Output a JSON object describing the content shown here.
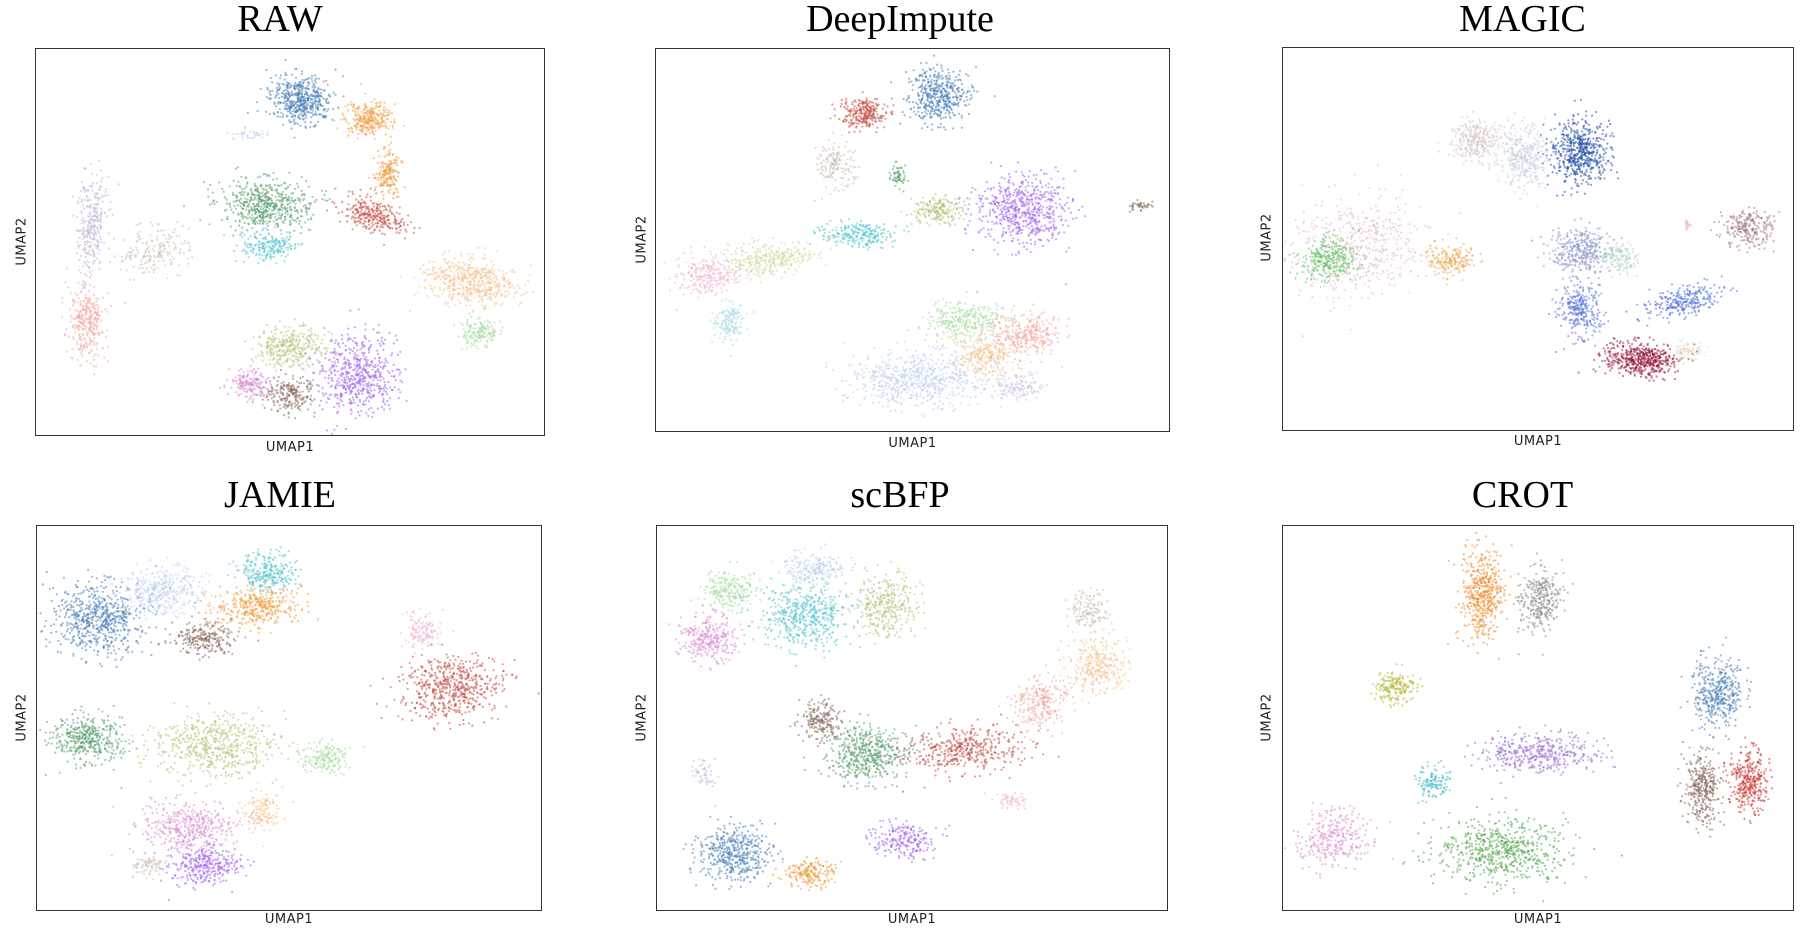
{
  "chart_data": [
    {
      "type": "scatter",
      "title": "RAW",
      "xlabel": "UMAP1",
      "ylabel": "UMAP2",
      "clusters": [
        {
          "color": "#4a7fb8",
          "x": 0.52,
          "y": 0.13,
          "rx": 0.06,
          "ry": 0.06,
          "rot": 0,
          "n": 520
        },
        {
          "color": "#f1a34b",
          "x": 0.65,
          "y": 0.18,
          "rx": 0.045,
          "ry": 0.045,
          "rot": 0,
          "n": 300
        },
        {
          "color": "#ee9a3a",
          "x": 0.69,
          "y": 0.32,
          "rx": 0.025,
          "ry": 0.06,
          "rot": 0,
          "n": 180
        },
        {
          "color": "#bcd0ec",
          "x": 0.42,
          "y": 0.22,
          "rx": 0.04,
          "ry": 0.012,
          "rot": 0,
          "n": 40
        },
        {
          "color": "#5a9e6f",
          "x": 0.45,
          "y": 0.4,
          "rx": 0.085,
          "ry": 0.065,
          "rot": 0,
          "n": 560
        },
        {
          "color": "#55c5cf",
          "x": 0.46,
          "y": 0.51,
          "rx": 0.055,
          "ry": 0.04,
          "rot": 0,
          "n": 200
        },
        {
          "color": "#c24a42",
          "x": 0.66,
          "y": 0.43,
          "rx": 0.07,
          "ry": 0.04,
          "rot": 0.5,
          "n": 280
        },
        {
          "color": "#f4c290",
          "x": 0.85,
          "y": 0.6,
          "rx": 0.09,
          "ry": 0.06,
          "rot": 0.3,
          "n": 520
        },
        {
          "color": "#a8dca0",
          "x": 0.87,
          "y": 0.73,
          "rx": 0.035,
          "ry": 0.04,
          "rot": 0,
          "n": 160
        },
        {
          "color": "#c4b4d6",
          "x": 0.11,
          "y": 0.45,
          "rx": 0.03,
          "ry": 0.12,
          "rot": 0.05,
          "n": 300
        },
        {
          "color": "#f3a8a0",
          "x": 0.1,
          "y": 0.7,
          "rx": 0.035,
          "ry": 0.1,
          "rot": 0,
          "n": 320
        },
        {
          "color": "#cdbdb4",
          "x": 0.23,
          "y": 0.52,
          "rx": 0.07,
          "ry": 0.06,
          "rot": -0.6,
          "n": 180
        },
        {
          "color": "#b7c27a",
          "x": 0.5,
          "y": 0.77,
          "rx": 0.07,
          "ry": 0.05,
          "rot": 0,
          "n": 320
        },
        {
          "color": "#a262ee",
          "x": 0.63,
          "y": 0.84,
          "rx": 0.08,
          "ry": 0.1,
          "rot": 0,
          "n": 560
        },
        {
          "color": "#8b6a5e",
          "x": 0.5,
          "y": 0.89,
          "rx": 0.05,
          "ry": 0.045,
          "rot": 0,
          "n": 220
        },
        {
          "color": "#da8dd2",
          "x": 0.42,
          "y": 0.86,
          "rx": 0.04,
          "ry": 0.035,
          "rot": 0,
          "n": 180
        }
      ]
    },
    {
      "type": "scatter",
      "title": "DeepImpute",
      "xlabel": "UMAP1",
      "ylabel": "UMAP2",
      "clusters": [
        {
          "color": "#4a7fb8",
          "x": 0.55,
          "y": 0.12,
          "rx": 0.06,
          "ry": 0.07,
          "rot": 0,
          "n": 460
        },
        {
          "color": "#c24a42",
          "x": 0.4,
          "y": 0.17,
          "rx": 0.045,
          "ry": 0.04,
          "rot": 0,
          "n": 260
        },
        {
          "color": "#cdbdb4",
          "x": 0.35,
          "y": 0.3,
          "rx": 0.035,
          "ry": 0.06,
          "rot": 0,
          "n": 160
        },
        {
          "color": "#5a9e6f",
          "x": 0.47,
          "y": 0.33,
          "rx": 0.014,
          "ry": 0.03,
          "rot": 0,
          "n": 60
        },
        {
          "color": "#a262ee",
          "x": 0.71,
          "y": 0.42,
          "rx": 0.09,
          "ry": 0.09,
          "rot": 0,
          "n": 620
        },
        {
          "color": "#b7c27a",
          "x": 0.55,
          "y": 0.42,
          "rx": 0.05,
          "ry": 0.035,
          "rot": 0,
          "n": 200
        },
        {
          "color": "#55c5cf",
          "x": 0.39,
          "y": 0.48,
          "rx": 0.07,
          "ry": 0.035,
          "rot": 0,
          "n": 240
        },
        {
          "color": "#d6d89e",
          "x": 0.22,
          "y": 0.55,
          "rx": 0.09,
          "ry": 0.045,
          "rot": -0.1,
          "n": 320
        },
        {
          "color": "#f1b6d4",
          "x": 0.1,
          "y": 0.59,
          "rx": 0.06,
          "ry": 0.05,
          "rot": 0,
          "n": 260
        },
        {
          "color": "#a9dde6",
          "x": 0.14,
          "y": 0.71,
          "rx": 0.03,
          "ry": 0.05,
          "rot": 0,
          "n": 160
        },
        {
          "color": "#8b6a5e",
          "x": 0.94,
          "y": 0.41,
          "rx": 0.02,
          "ry": 0.015,
          "rot": 0,
          "n": 40
        },
        {
          "color": "#a8dca0",
          "x": 0.6,
          "y": 0.71,
          "rx": 0.075,
          "ry": 0.05,
          "rot": 0,
          "n": 300
        },
        {
          "color": "#f3a8a0",
          "x": 0.72,
          "y": 0.74,
          "rx": 0.07,
          "ry": 0.055,
          "rot": 0,
          "n": 300
        },
        {
          "color": "#f4c290",
          "x": 0.64,
          "y": 0.8,
          "rx": 0.06,
          "ry": 0.05,
          "rot": 0,
          "n": 260
        },
        {
          "color": "#bcd0ec",
          "x": 0.51,
          "y": 0.86,
          "rx": 0.13,
          "ry": 0.07,
          "rot": 0,
          "n": 640
        },
        {
          "color": "#d4c1e6",
          "x": 0.7,
          "y": 0.88,
          "rx": 0.05,
          "ry": 0.035,
          "rot": 0,
          "n": 140
        }
      ]
    },
    {
      "type": "scatter",
      "title": "MAGIC",
      "xlabel": "UMAP1",
      "ylabel": "UMAP2",
      "clusters": [
        {
          "color": "#254fa6",
          "x": 0.58,
          "y": 0.27,
          "rx": 0.06,
          "ry": 0.08,
          "rot": 0,
          "n": 560
        },
        {
          "color": "#c8cfe4",
          "x": 0.47,
          "y": 0.28,
          "rx": 0.045,
          "ry": 0.08,
          "rot": 0,
          "n": 360
        },
        {
          "color": "#d9c7c7",
          "x": 0.38,
          "y": 0.24,
          "rx": 0.05,
          "ry": 0.05,
          "rot": 0,
          "n": 300
        },
        {
          "color": "#f0b3c8",
          "x": 0.79,
          "y": 0.46,
          "rx": 0.008,
          "ry": 0.01,
          "rot": 0,
          "n": 20
        },
        {
          "color": "#8b95c8",
          "x": 0.58,
          "y": 0.53,
          "rx": 0.06,
          "ry": 0.06,
          "rot": 0,
          "n": 360
        },
        {
          "color": "#5b77d8",
          "x": 0.58,
          "y": 0.68,
          "rx": 0.04,
          "ry": 0.07,
          "rot": 0,
          "n": 300
        },
        {
          "color": "#4c6ddb",
          "x": 0.78,
          "y": 0.66,
          "rx": 0.08,
          "ry": 0.035,
          "rot": -0.3,
          "n": 260
        },
        {
          "color": "#b7d5c2",
          "x": 0.66,
          "y": 0.55,
          "rx": 0.03,
          "ry": 0.04,
          "rot": 0,
          "n": 120
        },
        {
          "color": "#a47b83",
          "x": 0.91,
          "y": 0.47,
          "rx": 0.05,
          "ry": 0.05,
          "rot": 0,
          "n": 240
        },
        {
          "color": "#951c3c",
          "x": 0.7,
          "y": 0.81,
          "rx": 0.07,
          "ry": 0.045,
          "rot": 0.1,
          "n": 520
        },
        {
          "color": "#e8d8cc",
          "x": 0.79,
          "y": 0.79,
          "rx": 0.03,
          "ry": 0.025,
          "rot": 0,
          "n": 80
        },
        {
          "color": "#e7b9cc",
          "x": 0.14,
          "y": 0.52,
          "rx": 0.12,
          "ry": 0.14,
          "rot": 0.5,
          "n": 520
        },
        {
          "color": "#65c56a",
          "x": 0.09,
          "y": 0.55,
          "rx": 0.05,
          "ry": 0.06,
          "rot": 0.5,
          "n": 300
        },
        {
          "color": "#e9ad55",
          "x": 0.33,
          "y": 0.55,
          "rx": 0.05,
          "ry": 0.04,
          "rot": 0,
          "n": 200
        }
      ]
    },
    {
      "type": "scatter",
      "title": "JAMIE",
      "xlabel": "UMAP1",
      "ylabel": "UMAP2",
      "clusters": [
        {
          "color": "#4a7fb8",
          "x": 0.12,
          "y": 0.24,
          "rx": 0.09,
          "ry": 0.09,
          "rot": 0,
          "n": 640
        },
        {
          "color": "#bcd0ec",
          "x": 0.25,
          "y": 0.17,
          "rx": 0.08,
          "ry": 0.06,
          "rot": 0,
          "n": 360
        },
        {
          "color": "#55c5cf",
          "x": 0.45,
          "y": 0.12,
          "rx": 0.06,
          "ry": 0.05,
          "rot": 0,
          "n": 280
        },
        {
          "color": "#ee9a3a",
          "x": 0.44,
          "y": 0.21,
          "rx": 0.09,
          "ry": 0.05,
          "rot": -0.1,
          "n": 360
        },
        {
          "color": "#8b6a5e",
          "x": 0.33,
          "y": 0.29,
          "rx": 0.06,
          "ry": 0.04,
          "rot": 0,
          "n": 240
        },
        {
          "color": "#f1b6d4",
          "x": 0.76,
          "y": 0.27,
          "rx": 0.035,
          "ry": 0.05,
          "rot": 0,
          "n": 140
        },
        {
          "color": "#c24a42",
          "x": 0.82,
          "y": 0.42,
          "rx": 0.1,
          "ry": 0.08,
          "rot": -0.2,
          "n": 560
        },
        {
          "color": "#5a9e6f",
          "x": 0.1,
          "y": 0.55,
          "rx": 0.07,
          "ry": 0.06,
          "rot": 0,
          "n": 420
        },
        {
          "color": "#b7c27a",
          "x": 0.35,
          "y": 0.57,
          "rx": 0.12,
          "ry": 0.08,
          "rot": 0,
          "n": 560
        },
        {
          "color": "#a8dca0",
          "x": 0.57,
          "y": 0.6,
          "rx": 0.05,
          "ry": 0.04,
          "rot": 0,
          "n": 180
        },
        {
          "color": "#da8dd2",
          "x": 0.3,
          "y": 0.78,
          "rx": 0.09,
          "ry": 0.07,
          "rot": 0,
          "n": 420
        },
        {
          "color": "#a262ee",
          "x": 0.33,
          "y": 0.88,
          "rx": 0.07,
          "ry": 0.05,
          "rot": 0,
          "n": 320
        },
        {
          "color": "#f4c290",
          "x": 0.44,
          "y": 0.74,
          "rx": 0.04,
          "ry": 0.05,
          "rot": 0,
          "n": 140
        },
        {
          "color": "#cdbdb4",
          "x": 0.22,
          "y": 0.88,
          "rx": 0.03,
          "ry": 0.03,
          "rot": 0,
          "n": 80
        }
      ]
    },
    {
      "type": "scatter",
      "title": "scBFP",
      "xlabel": "UMAP1",
      "ylabel": "UMAP2",
      "clusters": [
        {
          "color": "#a8dca0",
          "x": 0.14,
          "y": 0.17,
          "rx": 0.05,
          "ry": 0.05,
          "rot": 0,
          "n": 220
        },
        {
          "color": "#bcd0ec",
          "x": 0.31,
          "y": 0.11,
          "rx": 0.06,
          "ry": 0.04,
          "rot": 0,
          "n": 200
        },
        {
          "color": "#55c5cf",
          "x": 0.29,
          "y": 0.23,
          "rx": 0.09,
          "ry": 0.08,
          "rot": 0,
          "n": 520
        },
        {
          "color": "#da8dd2",
          "x": 0.1,
          "y": 0.29,
          "rx": 0.055,
          "ry": 0.06,
          "rot": 0,
          "n": 300
        },
        {
          "color": "#b7c27a",
          "x": 0.45,
          "y": 0.21,
          "rx": 0.06,
          "ry": 0.08,
          "rot": 0,
          "n": 320
        },
        {
          "color": "#cdbdb4",
          "x": 0.84,
          "y": 0.22,
          "rx": 0.04,
          "ry": 0.05,
          "rot": 0,
          "n": 140
        },
        {
          "color": "#f4c290",
          "x": 0.86,
          "y": 0.36,
          "rx": 0.06,
          "ry": 0.07,
          "rot": 0,
          "n": 300
        },
        {
          "color": "#f3a8a0",
          "x": 0.75,
          "y": 0.46,
          "rx": 0.05,
          "ry": 0.07,
          "rot": 0.3,
          "n": 260
        },
        {
          "color": "#8b6a5e",
          "x": 0.32,
          "y": 0.5,
          "rx": 0.04,
          "ry": 0.05,
          "rot": 0,
          "n": 200
        },
        {
          "color": "#5a9e6f",
          "x": 0.41,
          "y": 0.59,
          "rx": 0.08,
          "ry": 0.07,
          "rot": 0,
          "n": 520
        },
        {
          "color": "#c24a42",
          "x": 0.6,
          "y": 0.58,
          "rx": 0.11,
          "ry": 0.06,
          "rot": -0.1,
          "n": 420
        },
        {
          "color": "#f1b6d4",
          "x": 0.69,
          "y": 0.71,
          "rx": 0.035,
          "ry": 0.02,
          "rot": 0.4,
          "n": 60
        },
        {
          "color": "#c4b4d6",
          "x": 0.09,
          "y": 0.64,
          "rx": 0.025,
          "ry": 0.04,
          "rot": 0,
          "n": 50
        },
        {
          "color": "#4a7fb8",
          "x": 0.15,
          "y": 0.85,
          "rx": 0.07,
          "ry": 0.07,
          "rot": 0,
          "n": 460
        },
        {
          "color": "#ee9a3a",
          "x": 0.3,
          "y": 0.9,
          "rx": 0.05,
          "ry": 0.035,
          "rot": 0,
          "n": 200
        },
        {
          "color": "#a262ee",
          "x": 0.48,
          "y": 0.81,
          "rx": 0.06,
          "ry": 0.05,
          "rot": 0,
          "n": 220
        }
      ]
    },
    {
      "type": "scatter",
      "title": "CROT",
      "xlabel": "UMAP1",
      "ylabel": "UMAP2",
      "clusters": [
        {
          "color": "#ee8a2e",
          "x": 0.39,
          "y": 0.18,
          "rx": 0.04,
          "ry": 0.12,
          "rot": 0,
          "n": 480
        },
        {
          "color": "#8e8e8e",
          "x": 0.5,
          "y": 0.19,
          "rx": 0.04,
          "ry": 0.08,
          "rot": 0,
          "n": 320
        },
        {
          "color": "#b9b83a",
          "x": 0.22,
          "y": 0.42,
          "rx": 0.04,
          "ry": 0.04,
          "rot": 0,
          "n": 200
        },
        {
          "color": "#4a7fb8",
          "x": 0.85,
          "y": 0.43,
          "rx": 0.05,
          "ry": 0.09,
          "rot": 0,
          "n": 420
        },
        {
          "color": "#8b6a5e",
          "x": 0.82,
          "y": 0.68,
          "rx": 0.035,
          "ry": 0.09,
          "rot": 0,
          "n": 360
        },
        {
          "color": "#c83a34",
          "x": 0.91,
          "y": 0.66,
          "rx": 0.035,
          "ry": 0.08,
          "rot": 0,
          "n": 340
        },
        {
          "color": "#9b6bd0",
          "x": 0.5,
          "y": 0.59,
          "rx": 0.12,
          "ry": 0.05,
          "rot": 0,
          "n": 420
        },
        {
          "color": "#3fb8c8",
          "x": 0.29,
          "y": 0.66,
          "rx": 0.035,
          "ry": 0.04,
          "rot": 0,
          "n": 120
        },
        {
          "color": "#4fa44b",
          "x": 0.43,
          "y": 0.84,
          "rx": 0.13,
          "ry": 0.08,
          "rot": 0,
          "n": 620
        },
        {
          "color": "#da8dd2",
          "x": 0.1,
          "y": 0.81,
          "rx": 0.07,
          "ry": 0.08,
          "rot": 0.4,
          "n": 300
        }
      ]
    }
  ]
}
